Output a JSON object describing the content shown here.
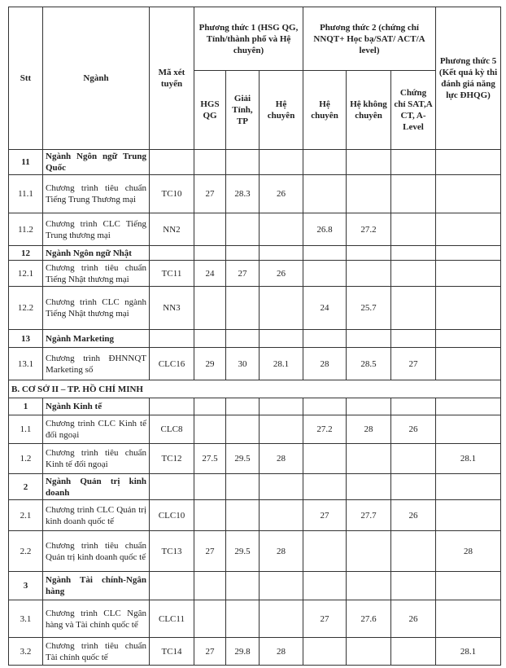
{
  "table": {
    "headers": {
      "stt": "Stt",
      "name": "Ngành",
      "code": "Mã xét tuyển",
      "groups": [
        "Phương thức 1 (HSG QG, Tỉnh/thành phố và Hệ chuyên)",
        "Phương thức 2 (chứng chỉ NNQT+ Học bạ/SAT/ ACT/A level)",
        "Phương thức 5 (Kết quả kỳ thi đánh giá năng lực ĐHQG)"
      ],
      "sub": [
        "HGS QG",
        "Giải Tỉnh, TP",
        "Hệ chuyên",
        "Hệ chuyên",
        "Hệ không chuyên",
        "Chứng chỉ SAT,A CT, A-Level"
      ]
    },
    "rows": [
      {
        "stt": "11",
        "name": "Ngành Ngôn ngữ Trung Quốc"
      },
      {
        "stt": "11.1",
        "name": "Chương trình tiêu chuẩn Tiếng Trung Thương mại",
        "code": "TC10",
        "scores": [
          27,
          28.3,
          26,
          null,
          null,
          null,
          null
        ]
      },
      {
        "stt": "11.2",
        "name": "Chương trình CLC Tiếng Trung thương mại",
        "code": "NN2",
        "scores": [
          null,
          null,
          null,
          26.8,
          27.2,
          null,
          null
        ]
      },
      {
        "stt": "12",
        "name": "Ngành Ngôn ngữ Nhật"
      },
      {
        "stt": "12.1",
        "name": "Chương trình tiêu chuẩn Tiếng Nhật thương mại",
        "code": "TC11",
        "scores": [
          24,
          27,
          26,
          null,
          null,
          null,
          null
        ]
      },
      {
        "stt": "12.2",
        "name": "Chương trình CLC ngành Tiếng Nhật thương mại",
        "code": "NN3",
        "scores": [
          null,
          null,
          null,
          24,
          25.7,
          null,
          null
        ]
      },
      {
        "stt": "13",
        "name": "Ngành Marketing"
      },
      {
        "stt": "13.1",
        "name": "Chương trình ĐHNNQT Marketing số",
        "code": "CLC16",
        "scores": [
          29,
          30,
          28.1,
          28,
          28.5,
          27,
          null
        ]
      },
      {
        "section": "B. CƠ SỞ II – TP. HỒ CHÍ MINH"
      },
      {
        "stt": "1",
        "name": "Ngành Kinh tế"
      },
      {
        "stt": "1.1",
        "name": "Chương trình CLC Kinh tế đối ngoại",
        "code": "CLC8",
        "scores": [
          null,
          null,
          null,
          27.2,
          28,
          26,
          null
        ]
      },
      {
        "stt": "1.2",
        "name": "Chương trình tiêu chuẩn Kinh tế đối ngoại",
        "code": "TC12",
        "scores": [
          27.5,
          29.5,
          28,
          null,
          null,
          null,
          28.1
        ]
      },
      {
        "stt": "2",
        "name": "Ngành Quản trị kinh doanh"
      },
      {
        "stt": "2.1",
        "name": "Chương trình CLC Quản trị kinh doanh quốc tế",
        "code": "CLC10",
        "scores": [
          null,
          null,
          null,
          27,
          27.7,
          26,
          null
        ]
      },
      {
        "stt": "2.2",
        "name": "Chương trình tiêu chuẩn Quản trị kinh doanh quốc tế",
        "code": "TC13",
        "scores": [
          27,
          29.5,
          28,
          null,
          null,
          null,
          28
        ]
      },
      {
        "stt": "3",
        "name": "Ngành Tài chính-Ngân hàng"
      },
      {
        "stt": "3.1",
        "name": "Chương trình CLC Ngân hàng và Tài chính quốc tế",
        "code": "CLC11",
        "scores": [
          null,
          null,
          null,
          27,
          27.6,
          26,
          null
        ]
      },
      {
        "stt": "3.2",
        "name": "Chương trình tiêu chuẩn Tài chính quốc tế",
        "code": "TC14",
        "scores": [
          27,
          29.8,
          28,
          null,
          null,
          null,
          28.1
        ]
      }
    ]
  }
}
